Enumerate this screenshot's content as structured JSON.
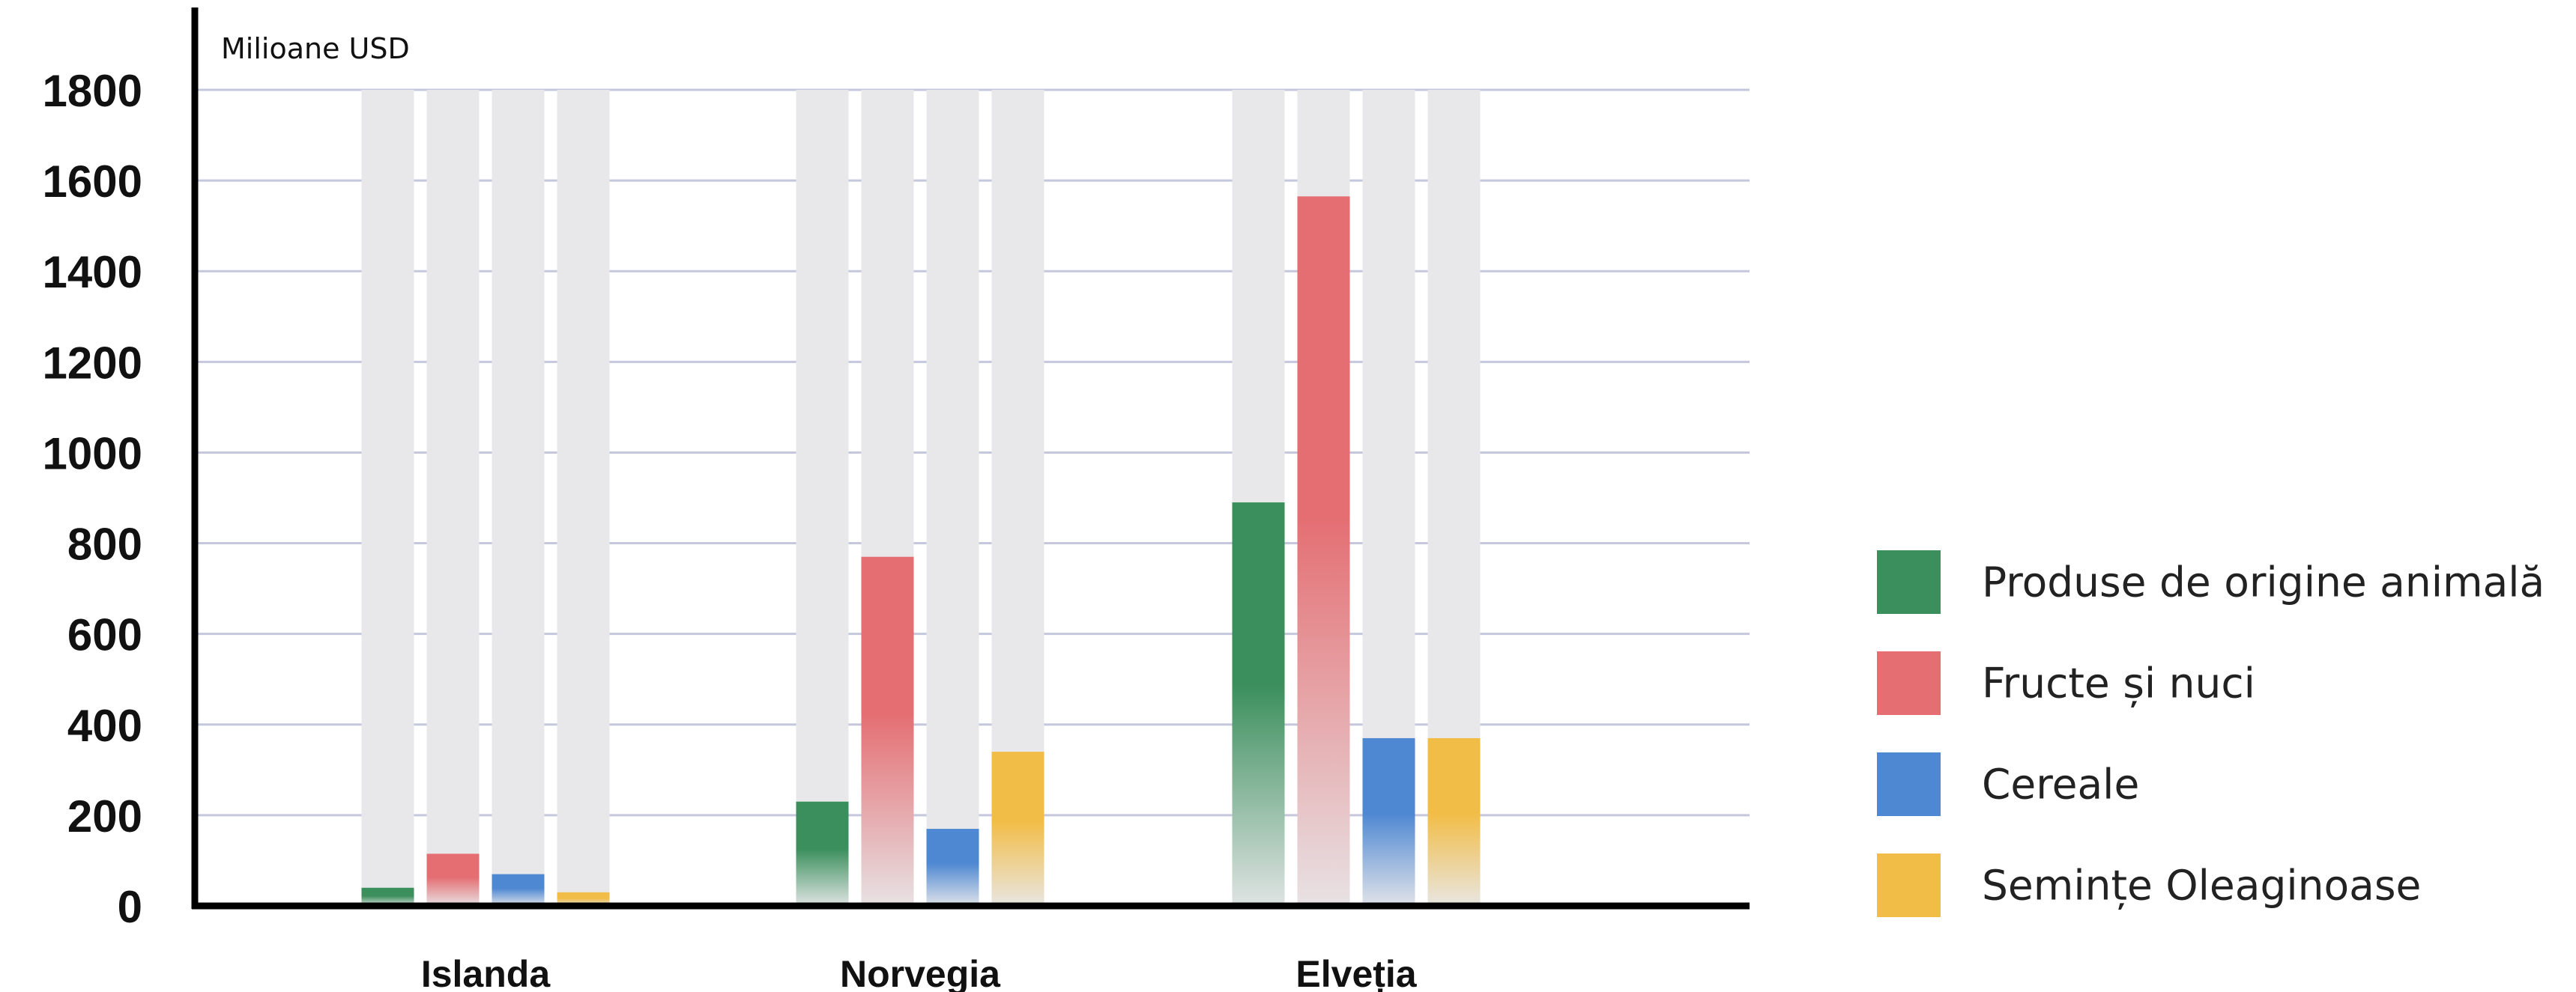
{
  "chart_data": {
    "type": "bar",
    "title": "",
    "unit_label": "Milioane USD",
    "xlabel": "",
    "ylabel": "",
    "ylim": [
      0,
      1800
    ],
    "yticks": [
      0,
      200,
      400,
      600,
      800,
      1000,
      1200,
      1400,
      1600,
      1800
    ],
    "grid": true,
    "legend_position": "right",
    "categories": [
      "Islanda",
      "Norvegia",
      "Elveția"
    ],
    "series": [
      {
        "name": "Produse de origine animală",
        "color": "#3a8f5c",
        "values": [
          40,
          230,
          890
        ]
      },
      {
        "name": "Fructe și nuci",
        "color": "#e46e72",
        "values": [
          115,
          770,
          1565
        ]
      },
      {
        "name": "Cereale",
        "color": "#4f88d2",
        "values": [
          70,
          170,
          370
        ]
      },
      {
        "name": "Semințe Oleaginoase",
        "color": "#f2bd47",
        "values": [
          30,
          340,
          370
        ]
      }
    ]
  }
}
